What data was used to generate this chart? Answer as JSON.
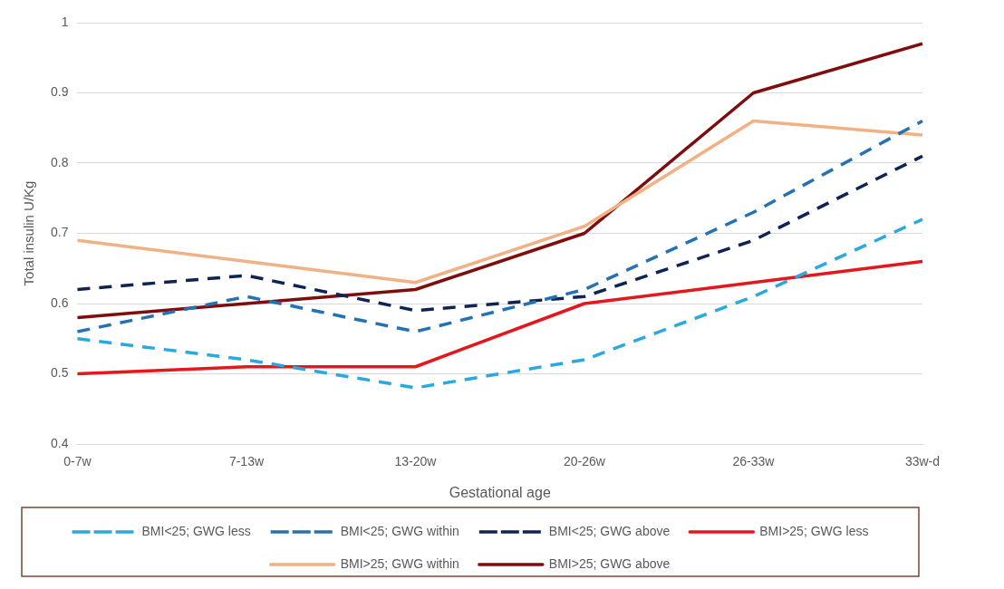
{
  "chart_data": {
    "type": "line",
    "xlabel": "Gestational age",
    "ylabel": "Total insulin U/Kg",
    "categories": [
      "0-7w",
      "7-13w",
      "13-20w",
      "20-26w",
      "26-33w",
      "33w-d"
    ],
    "series": [
      {
        "name": "BMI<25; GWG less",
        "color": "#29a9e0",
        "line_style": "dashed",
        "values": [
          0.55,
          0.52,
          0.48,
          0.52,
          0.61,
          0.72
        ]
      },
      {
        "name": "BMI<25; GWG within",
        "color": "#2472b3",
        "line_style": "dashed",
        "values": [
          0.56,
          0.61,
          0.56,
          0.62,
          0.73,
          0.86
        ]
      },
      {
        "name": "BMI<25; GWG above",
        "color": "#0f2454",
        "line_style": "dashed",
        "values": [
          0.62,
          0.64,
          0.59,
          0.61,
          0.69,
          0.81
        ]
      },
      {
        "name": "BMI>25; GWG less",
        "color": "#e3171c",
        "line_style": "solid",
        "values": [
          0.5,
          0.51,
          0.51,
          0.6,
          0.63,
          0.66
        ]
      },
      {
        "name": "BMI>25; GWG within",
        "color": "#f0b184",
        "line_style": "solid",
        "values": [
          0.69,
          0.66,
          0.63,
          0.71,
          0.86,
          0.84
        ]
      },
      {
        "name": "BMI>25; GWG above",
        "color": "#7f0d0d",
        "line_style": "solid",
        "values": [
          0.58,
          0.6,
          0.62,
          0.7,
          0.9,
          0.97
        ]
      }
    ],
    "ylim": [
      0.4,
      1
    ],
    "yticks": [
      0.4,
      0.5,
      0.6,
      0.7,
      0.8,
      0.9,
      1
    ],
    "grid": "y",
    "legend": "bottom",
    "marker": "none"
  }
}
